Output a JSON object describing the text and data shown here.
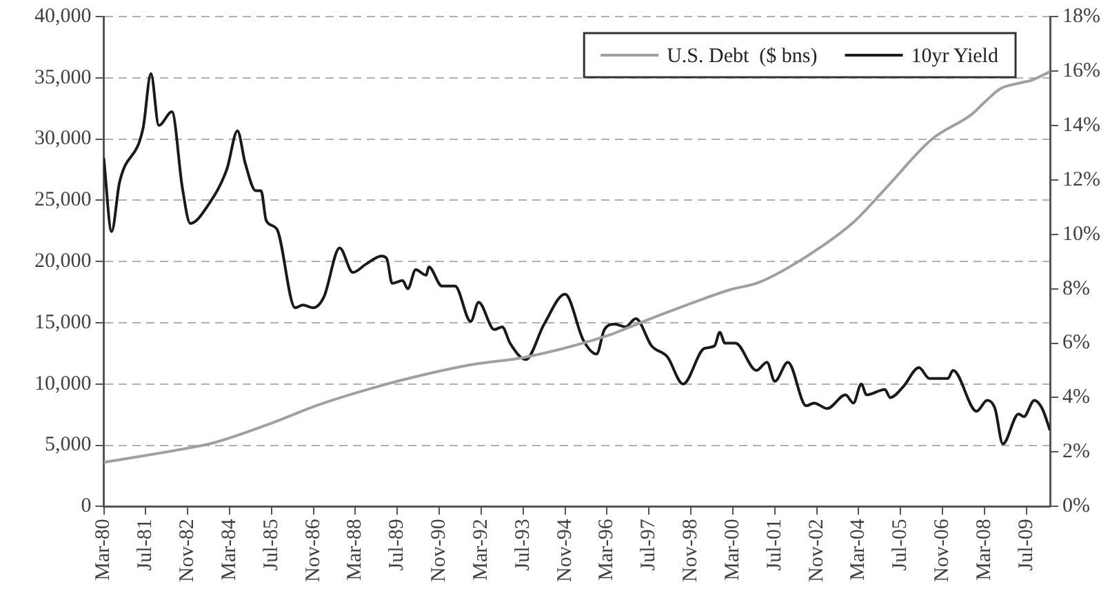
{
  "chart_data": {
    "type": "line",
    "legend": "top right",
    "grid": "y",
    "marker": "none",
    "line_style": "solid",
    "xlim": [
      "1980-03",
      "2010-04"
    ],
    "xticks": [
      {
        "value": "1980-03",
        "label": "Mar-80"
      },
      {
        "value": "1981-07",
        "label": "Jul-81"
      },
      {
        "value": "1982-11",
        "label": "Nov-82"
      },
      {
        "value": "1984-03",
        "label": "Mar-84"
      },
      {
        "value": "1985-07",
        "label": "Jul-85"
      },
      {
        "value": "1986-11",
        "label": "Nov-86"
      },
      {
        "value": "1988-03",
        "label": "Mar-88"
      },
      {
        "value": "1989-07",
        "label": "Jul-89"
      },
      {
        "value": "1990-11",
        "label": "Nov-90"
      },
      {
        "value": "1992-03",
        "label": "Mar-92"
      },
      {
        "value": "1993-07",
        "label": "Jul-93"
      },
      {
        "value": "1994-11",
        "label": "Nov-94"
      },
      {
        "value": "1996-03",
        "label": "Mar-96"
      },
      {
        "value": "1997-07",
        "label": "Jul-97"
      },
      {
        "value": "1998-11",
        "label": "Nov-98"
      },
      {
        "value": "2000-03",
        "label": "Mar-00"
      },
      {
        "value": "2001-07",
        "label": "Jul-01"
      },
      {
        "value": "2002-11",
        "label": "Nov-02"
      },
      {
        "value": "2004-03",
        "label": "Mar-04"
      },
      {
        "value": "2005-07",
        "label": "Jul-05"
      },
      {
        "value": "2006-11",
        "label": "Nov-06"
      },
      {
        "value": "2008-03",
        "label": "Mar-08"
      },
      {
        "value": "2009-07",
        "label": "Jul-09"
      }
    ],
    "ylim": [
      0,
      40000
    ],
    "yticks": [
      0,
      {
        "value": 5000,
        "label": "5,000"
      },
      {
        "value": 10000,
        "label": "10,000"
      },
      {
        "value": 15000,
        "label": "15,000"
      },
      {
        "value": 20000,
        "label": "20,000"
      },
      {
        "value": 25000,
        "label": "25,000"
      },
      {
        "value": 30000,
        "label": "30,000"
      },
      {
        "value": 35000,
        "label": "35,000"
      },
      {
        "value": 40000,
        "label": "40,000"
      }
    ],
    "y2lim": [
      0,
      18
    ],
    "y2ticks": [
      {
        "value": 0,
        "label": "0%"
      },
      {
        "value": 2,
        "label": "2%"
      },
      {
        "value": 4,
        "label": "4%"
      },
      {
        "value": 6,
        "label": "6%"
      },
      {
        "value": 8,
        "label": "8%"
      },
      {
        "value": 10,
        "label": "10%"
      },
      {
        "value": 12,
        "label": "12%"
      },
      {
        "value": 14,
        "label": "14%"
      },
      {
        "value": 16,
        "label": "16%"
      },
      {
        "value": 18,
        "label": "18%"
      }
    ],
    "series": [
      {
        "name": "U.S. Debt  ($ bns)",
        "color": "#a0a0a0",
        "x": [
          "1980-03",
          "1982-12",
          "1983-09",
          "1985-07",
          "1987-01",
          "1988-10",
          "1990-06",
          "1991-12",
          "1993-08",
          "1996-04",
          "1996-11",
          "1998-05",
          "2000-02",
          "2001-01",
          "2002-07",
          "2004-01",
          "2005-01",
          "2006-07",
          "2007-10",
          "2008-03",
          "2008-09",
          "2009-05",
          "2009-09",
          "2010-04"
        ],
        "values": [
          3600,
          4800,
          5200,
          6800,
          8300,
          9700,
          10800,
          11600,
          12200,
          14000,
          14600,
          16100,
          17700,
          18300,
          20400,
          23200,
          25900,
          30000,
          32000,
          33000,
          34100,
          34600,
          34800,
          35500
        ]
      },
      {
        "name": "10yr Yield",
        "color": "#1a1a1a",
        "axis": "y2",
        "x": [
          "1980-03",
          "1980-06",
          "1980-09",
          "1981-06",
          "1981-09",
          "1981-12",
          "1982-05",
          "1982-09",
          "1982-12",
          "1983-07",
          "1984-02",
          "1984-06",
          "1984-09",
          "1985-01",
          "1985-03",
          "1985-05",
          "1985-09",
          "1986-04",
          "1986-07",
          "1986-11",
          "1987-03",
          "1987-09",
          "1988-02",
          "1988-07",
          "1989-01",
          "1989-03",
          "1989-05",
          "1989-09",
          "1989-11",
          "1990-02",
          "1990-06",
          "1990-07",
          "1990-12",
          "1991-05",
          "1991-11",
          "1992-02",
          "1992-08",
          "1992-11",
          "1993-02",
          "1993-08",
          "1994-03",
          "1994-11",
          "1995-06",
          "1995-11",
          "1996-02",
          "1996-06",
          "1996-10",
          "1997-02",
          "1997-08",
          "1998-02",
          "1998-08",
          "1999-04",
          "1999-08",
          "1999-10",
          "1999-12",
          "2000-04",
          "2000-12",
          "2001-04",
          "2001-07",
          "2001-12",
          "2002-07",
          "2002-10",
          "2003-03",
          "2003-10",
          "2004-01",
          "2004-04",
          "2004-06",
          "2005-01",
          "2005-03",
          "2005-08",
          "2006-02",
          "2006-06",
          "2007-01",
          "2007-03",
          "2007-12",
          "2008-04",
          "2008-07",
          "2008-10",
          "2009-04",
          "2009-06",
          "2009-10",
          "2010-01",
          "2010-04"
        ],
        "values": [
          12.8,
          10.1,
          11.9,
          13.9,
          15.9,
          14.0,
          14.5,
          11.7,
          10.4,
          11.1,
          12.4,
          13.8,
          12.6,
          11.6,
          11.6,
          10.5,
          10.2,
          7.3,
          7.4,
          7.3,
          7.7,
          9.5,
          8.6,
          8.9,
          9.2,
          9.1,
          8.2,
          8.3,
          8.0,
          8.7,
          8.5,
          8.8,
          8.1,
          8.1,
          6.8,
          7.5,
          6.5,
          6.6,
          6.0,
          5.4,
          6.7,
          7.8,
          6.1,
          5.6,
          6.5,
          6.7,
          6.6,
          6.9,
          5.9,
          5.5,
          4.5,
          5.8,
          5.9,
          6.4,
          6.0,
          6.0,
          5.0,
          5.3,
          4.6,
          5.3,
          3.7,
          3.8,
          3.6,
          4.1,
          3.8,
          4.5,
          4.1,
          4.3,
          4.0,
          4.4,
          5.1,
          4.7,
          4.7,
          5.0,
          3.5,
          3.9,
          3.6,
          2.3,
          3.4,
          3.3,
          3.9,
          3.6,
          2.8
        ]
      }
    ]
  }
}
